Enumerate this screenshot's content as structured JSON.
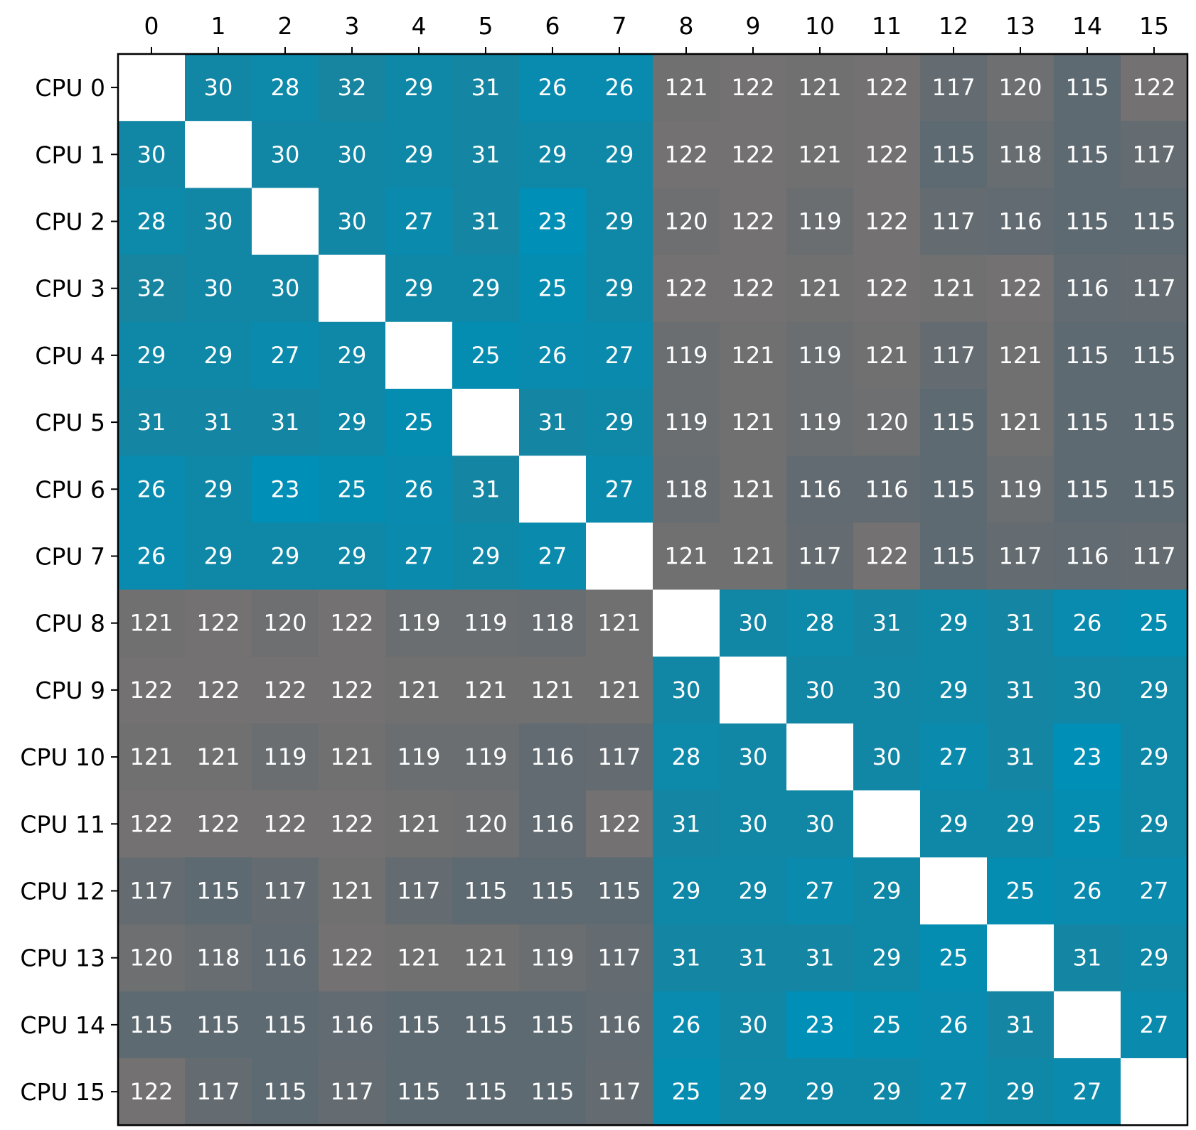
{
  "chart_data": {
    "type": "heatmap",
    "title": "",
    "xlabel": "",
    "ylabel": "",
    "x_tick_labels": [
      "0",
      "1",
      "2",
      "3",
      "4",
      "5",
      "6",
      "7",
      "8",
      "9",
      "10",
      "11",
      "12",
      "13",
      "14",
      "15"
    ],
    "y_tick_labels": [
      "CPU 0",
      "CPU 1",
      "CPU 2",
      "CPU 3",
      "CPU 4",
      "CPU 5",
      "CPU 6",
      "CPU 7",
      "CPU 8",
      "CPU 9",
      "CPU 10",
      "CPU 11",
      "CPU 12",
      "CPU 13",
      "CPU 14",
      "CPU 15"
    ],
    "x_axis_position": "top",
    "diagonal": "blank",
    "values": [
      [
        null,
        30,
        28,
        32,
        29,
        31,
        26,
        26,
        121,
        122,
        121,
        122,
        117,
        120,
        115,
        122
      ],
      [
        30,
        null,
        30,
        30,
        29,
        31,
        29,
        29,
        122,
        122,
        121,
        122,
        115,
        118,
        115,
        117
      ],
      [
        28,
        30,
        null,
        30,
        27,
        31,
        23,
        29,
        120,
        122,
        119,
        122,
        117,
        116,
        115,
        115
      ],
      [
        32,
        30,
        30,
        null,
        29,
        29,
        25,
        29,
        122,
        122,
        121,
        122,
        121,
        122,
        116,
        117
      ],
      [
        29,
        29,
        27,
        29,
        null,
        25,
        26,
        27,
        119,
        121,
        119,
        121,
        117,
        121,
        115,
        115
      ],
      [
        31,
        31,
        31,
        29,
        25,
        null,
        31,
        29,
        119,
        121,
        119,
        120,
        115,
        121,
        115,
        115
      ],
      [
        26,
        29,
        23,
        25,
        26,
        31,
        null,
        27,
        118,
        121,
        116,
        116,
        115,
        119,
        115,
        115
      ],
      [
        26,
        29,
        29,
        29,
        27,
        29,
        27,
        null,
        121,
        121,
        117,
        122,
        115,
        117,
        116,
        117
      ],
      [
        121,
        122,
        120,
        122,
        119,
        119,
        118,
        121,
        null,
        30,
        28,
        31,
        29,
        31,
        26,
        25
      ],
      [
        122,
        122,
        122,
        122,
        121,
        121,
        121,
        121,
        30,
        null,
        30,
        30,
        29,
        31,
        30,
        29
      ],
      [
        121,
        121,
        119,
        121,
        119,
        119,
        116,
        117,
        28,
        30,
        null,
        30,
        27,
        31,
        23,
        29
      ],
      [
        122,
        122,
        122,
        122,
        121,
        120,
        116,
        122,
        31,
        30,
        30,
        null,
        29,
        29,
        25,
        29
      ],
      [
        117,
        115,
        117,
        121,
        117,
        115,
        115,
        115,
        29,
        29,
        27,
        29,
        null,
        25,
        26,
        27
      ],
      [
        120,
        118,
        116,
        122,
        121,
        121,
        119,
        117,
        31,
        31,
        31,
        29,
        25,
        null,
        31,
        29
      ],
      [
        115,
        115,
        115,
        116,
        115,
        115,
        115,
        116,
        26,
        30,
        23,
        25,
        26,
        31,
        null,
        27
      ],
      [
        122,
        117,
        115,
        117,
        115,
        115,
        115,
        117,
        25,
        29,
        29,
        29,
        27,
        29,
        27,
        null
      ]
    ],
    "colorscale": [
      {
        "value": 23,
        "color": "#008fb6"
      },
      {
        "value": 32,
        "color": "#1784a0"
      },
      {
        "value": 115,
        "color": "#5e6a71"
      },
      {
        "value": 122,
        "color": "#737171"
      }
    ],
    "grid": false,
    "legend": "none"
  }
}
